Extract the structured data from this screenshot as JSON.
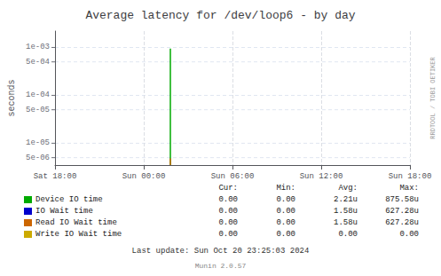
{
  "chart_data": {
    "type": "line",
    "title": "Average latency for /dev/loop6 - by day",
    "ylabel": "seconds",
    "log": "y",
    "grid": true,
    "legend": "bottom",
    "xlim": [
      0,
      24
    ],
    "xticks": [
      {
        "value": 0,
        "label": "Sat 18:00"
      },
      {
        "value": 6,
        "label": "Sun 00:00"
      },
      {
        "value": 12,
        "label": "Sun 06:00"
      },
      {
        "value": 18,
        "label": "Sun 12:00"
      },
      {
        "value": 24,
        "label": "Sun 18:00"
      }
    ],
    "ylim": [
      3.5e-06,
      0.0022
    ],
    "yticks": [
      {
        "value": 5e-06,
        "label": "5e-06"
      },
      {
        "value": 1e-05,
        "label": "1e-05"
      },
      {
        "value": 5e-05,
        "label": "5e-05"
      },
      {
        "value": 0.0001,
        "label": "1e-04"
      },
      {
        "value": 0.0005,
        "label": "5e-04"
      },
      {
        "value": 0.001,
        "label": "1e-03"
      }
    ],
    "stat_columns": [
      "Cur:",
      "Min:",
      "Avg:",
      "Max:"
    ],
    "series": [
      {
        "name": "Device IO time",
        "color": "#00aa00",
        "x": [
          7.8,
          7.8
        ],
        "values": [
          3.5e-06,
          0.00095
        ],
        "stats": [
          "0.00",
          "0.00",
          "2.21u",
          "875.58u"
        ]
      },
      {
        "name": "IO Wait time",
        "color": "#0000cc",
        "x": [],
        "values": [],
        "stats": [
          "0.00",
          "0.00",
          "1.58u",
          "627.28u"
        ]
      },
      {
        "name": "Read IO Wait time",
        "color": "#cc6600",
        "x": [
          7.8,
          7.8
        ],
        "values": [
          3.5e-06,
          4.8e-06
        ],
        "stats": [
          "0.00",
          "0.00",
          "1.58u",
          "627.28u"
        ]
      },
      {
        "name": "Write IO Wait time",
        "color": "#ccaa00",
        "x": [],
        "values": [],
        "stats": [
          "0.00",
          "0.00",
          "0.00",
          "0.00"
        ]
      }
    ],
    "annotations": [
      "Last update: Sun Oct 20 23:25:03 2024",
      "Munin 2.0.57",
      "RRDTOOL / TOBI OETIKER"
    ]
  }
}
